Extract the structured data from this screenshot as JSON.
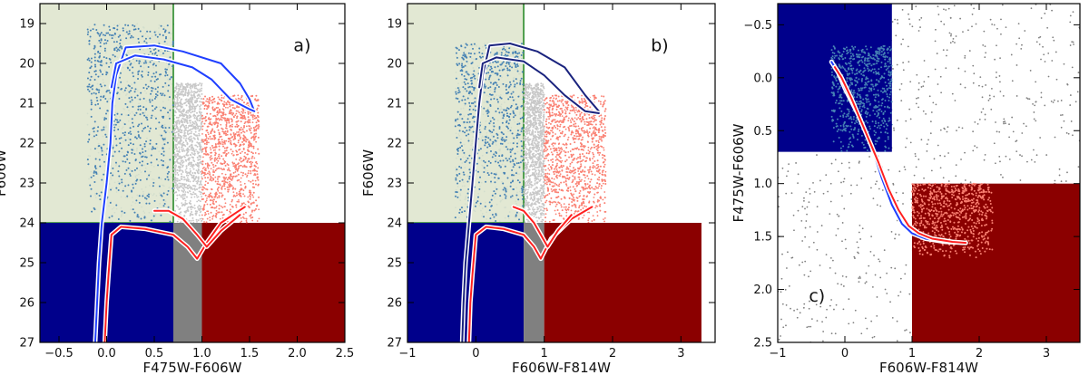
{
  "chart_data": [
    {
      "type": "scatter",
      "panel_label": "a)",
      "xlabel": "F475W-F606W",
      "ylabel": "F606W",
      "xlim": [
        -0.7,
        2.5
      ],
      "ylim": [
        27,
        18.5
      ],
      "y_inverted": true,
      "xticks": [
        -0.5,
        0.0,
        0.5,
        1.0,
        1.5,
        2.0,
        2.5
      ],
      "xtick_labels": [
        "−0.5",
        "0.0",
        "0.5",
        "1.0",
        "1.5",
        "2.0",
        "2.5"
      ],
      "yticks": [
        19,
        20,
        21,
        22,
        23,
        24,
        25,
        26,
        27
      ],
      "ytick_labels": [
        "19",
        "20",
        "21",
        "22",
        "23",
        "24",
        "25",
        "26",
        "27"
      ],
      "selection_box": {
        "x": [
          -0.7,
          0.7
        ],
        "y": [
          18.5,
          24
        ],
        "color": "#dfe6cf",
        "edge": "#2a8a2a"
      },
      "regions": [
        {
          "x": [
            -0.7,
            0.7
          ],
          "y": [
            24,
            27
          ],
          "color": "#00008b"
        },
        {
          "x": [
            0.7,
            1.0
          ],
          "y": [
            24,
            27
          ],
          "color": "#808080"
        },
        {
          "x": [
            1.0,
            2.5
          ],
          "y": [
            24,
            27
          ],
          "color": "#8b0000"
        }
      ],
      "point_clouds": [
        {
          "color": "#4682b4",
          "x": [
            -0.2,
            0.7
          ],
          "y": [
            19.0,
            24
          ]
        },
        {
          "color": "#c8c8c8",
          "x": [
            0.7,
            1.0
          ],
          "y": [
            20.5,
            24
          ]
        },
        {
          "color": "#fa8072",
          "x": [
            1.0,
            1.6
          ],
          "y": [
            20.8,
            24
          ]
        }
      ],
      "isochrones": [
        {
          "color": "#1f3fff",
          "x": [
            -0.12,
            -0.1,
            -0.08,
            -0.05,
            0.0,
            0.04,
            0.06,
            0.1,
            0.2,
            0.5,
            0.8,
            1.2,
            1.4,
            1.5,
            1.55
          ],
          "y": [
            27.0,
            26.0,
            25.0,
            24.0,
            23.0,
            22.0,
            21.0,
            20.3,
            19.6,
            19.55,
            19.7,
            20.0,
            20.5,
            20.9,
            21.2
          ]
        },
        {
          "color": "#1f3fff",
          "x": [
            0.05,
            0.1,
            0.3,
            0.6,
            0.9,
            1.1,
            1.3,
            1.5,
            1.55
          ],
          "y": [
            20.6,
            20.0,
            19.8,
            19.9,
            20.1,
            20.4,
            20.9,
            21.15,
            21.2
          ]
        },
        {
          "color": "#ff2020",
          "x": [
            -0.02,
            0.0,
            0.02,
            0.05,
            0.15,
            0.4,
            0.7,
            0.85,
            0.95,
            1.05,
            1.2,
            1.45
          ],
          "y": [
            27.0,
            26.0,
            25.3,
            24.3,
            24.1,
            24.15,
            24.3,
            24.6,
            24.9,
            24.5,
            24.0,
            23.6
          ]
        },
        {
          "color": "#ff2020",
          "x": [
            0.5,
            0.65,
            0.8,
            0.95,
            1.05,
            1.2,
            1.4
          ],
          "y": [
            23.7,
            23.7,
            23.9,
            24.3,
            24.6,
            24.2,
            23.8
          ]
        }
      ]
    },
    {
      "type": "scatter",
      "panel_label": "b)",
      "xlabel": "F606W-F814W",
      "ylabel": "F606W",
      "xlim": [
        -1,
        3.5
      ],
      "ylim": [
        27,
        18.5
      ],
      "y_inverted": true,
      "xticks": [
        -1,
        0,
        1,
        2,
        3
      ],
      "xtick_labels": [
        "−1",
        "0",
        "1",
        "2",
        "3"
      ],
      "yticks": [
        19,
        20,
        21,
        22,
        23,
        24,
        25,
        26,
        27
      ],
      "ytick_labels": [
        "19",
        "20",
        "21",
        "22",
        "23",
        "24",
        "25",
        "26",
        "27"
      ],
      "selection_box": {
        "x": [
          -1,
          0.7
        ],
        "y": [
          18.5,
          24
        ],
        "color": "#dfe6cf",
        "edge": "#2a8a2a"
      },
      "regions": [
        {
          "x": [
            -1,
            0.7
          ],
          "y": [
            24,
            27
          ],
          "color": "#00008b"
        },
        {
          "x": [
            0.7,
            1.0
          ],
          "y": [
            24,
            27
          ],
          "color": "#808080"
        },
        {
          "x": [
            1.0,
            3.3
          ],
          "y": [
            24,
            27
          ],
          "color": "#8b0000"
        }
      ],
      "point_clouds": [
        {
          "color": "#4682b4",
          "x": [
            -0.3,
            0.7
          ],
          "y": [
            19.5,
            24
          ]
        },
        {
          "color": "#c8c8c8",
          "x": [
            0.7,
            1.0
          ],
          "y": [
            20.5,
            24
          ]
        },
        {
          "color": "#fa8072",
          "x": [
            1.0,
            1.9
          ],
          "y": [
            20.8,
            24
          ]
        }
      ],
      "isochrones": [
        {
          "color": "#1a237e",
          "x": [
            -0.2,
            -0.18,
            -0.15,
            -0.1,
            -0.05,
            0.0,
            0.05,
            0.1,
            0.2,
            0.5,
            0.9,
            1.3,
            1.6,
            1.8
          ],
          "y": [
            27.0,
            26.0,
            25.0,
            24.0,
            23.0,
            22.0,
            21.0,
            20.3,
            19.55,
            19.5,
            19.7,
            20.1,
            20.8,
            21.2
          ]
        },
        {
          "color": "#1a237e",
          "x": [
            0.05,
            0.1,
            0.3,
            0.7,
            1.0,
            1.3,
            1.6,
            1.8
          ],
          "y": [
            20.6,
            20.0,
            19.85,
            19.95,
            20.3,
            20.8,
            21.2,
            21.25
          ]
        },
        {
          "color": "#ff2020",
          "x": [
            -0.1,
            -0.08,
            -0.05,
            0.0,
            0.15,
            0.4,
            0.7,
            0.85,
            0.95,
            1.1,
            1.4,
            1.7
          ],
          "y": [
            27.0,
            26.0,
            25.3,
            24.3,
            24.1,
            24.15,
            24.3,
            24.6,
            24.9,
            24.4,
            23.9,
            23.6
          ]
        },
        {
          "color": "#ff2020",
          "x": [
            0.55,
            0.7,
            0.85,
            0.95,
            1.05,
            1.2,
            1.4
          ],
          "y": [
            23.6,
            23.7,
            24.0,
            24.3,
            24.6,
            24.2,
            23.8
          ]
        }
      ]
    },
    {
      "type": "scatter",
      "panel_label": "c)",
      "xlabel": "F606W-F814W",
      "ylabel": "F475W-F606W",
      "xlim": [
        -1,
        3.5
      ],
      "ylim": [
        2.5,
        -0.7
      ],
      "y_inverted": true,
      "xticks": [
        -1,
        0,
        1,
        2,
        3
      ],
      "xtick_labels": [
        "−1",
        "0",
        "1",
        "2",
        "3"
      ],
      "yticks": [
        -0.5,
        0.0,
        0.5,
        1.0,
        1.5,
        2.0,
        2.5
      ],
      "ytick_labels": [
        "−0.5",
        "0.0",
        "0.5",
        "1.0",
        "1.5",
        "2.0",
        "2.5"
      ],
      "regions": [
        {
          "x": [
            -1,
            0.7
          ],
          "y": [
            -0.7,
            0.7
          ],
          "color": "#00008b"
        },
        {
          "x": [
            1.0,
            3.5
          ],
          "y": [
            1.0,
            2.5
          ],
          "color": "#8b0000"
        }
      ],
      "point_clouds": [
        {
          "color": "#4682b4",
          "x": [
            -0.2,
            0.7
          ],
          "y": [
            -0.3,
            0.7
          ]
        },
        {
          "color": "#fa8072",
          "x": [
            1.0,
            2.2
          ],
          "y": [
            1.0,
            1.7
          ]
        },
        {
          "color": "#808080",
          "x": [
            -1,
            3.5
          ],
          "y": [
            -0.7,
            2.5
          ]
        }
      ],
      "isochrones": [
        {
          "color": "#1f3fff",
          "x": [
            -0.2,
            -0.1,
            0.0,
            0.2,
            0.4,
            0.55,
            0.7,
            0.85,
            1.0,
            1.2,
            1.5,
            1.8
          ],
          "y": [
            -0.15,
            -0.05,
            0.1,
            0.35,
            0.65,
            0.95,
            1.2,
            1.38,
            1.47,
            1.52,
            1.55,
            1.56
          ]
        },
        {
          "color": "#ff2020",
          "x": [
            -0.15,
            -0.05,
            0.1,
            0.3,
            0.5,
            0.65,
            0.8,
            0.95,
            1.1,
            1.3,
            1.6,
            1.8
          ],
          "y": [
            -0.1,
            0.0,
            0.2,
            0.5,
            0.8,
            1.05,
            1.25,
            1.4,
            1.47,
            1.52,
            1.55,
            1.56
          ]
        }
      ]
    }
  ]
}
